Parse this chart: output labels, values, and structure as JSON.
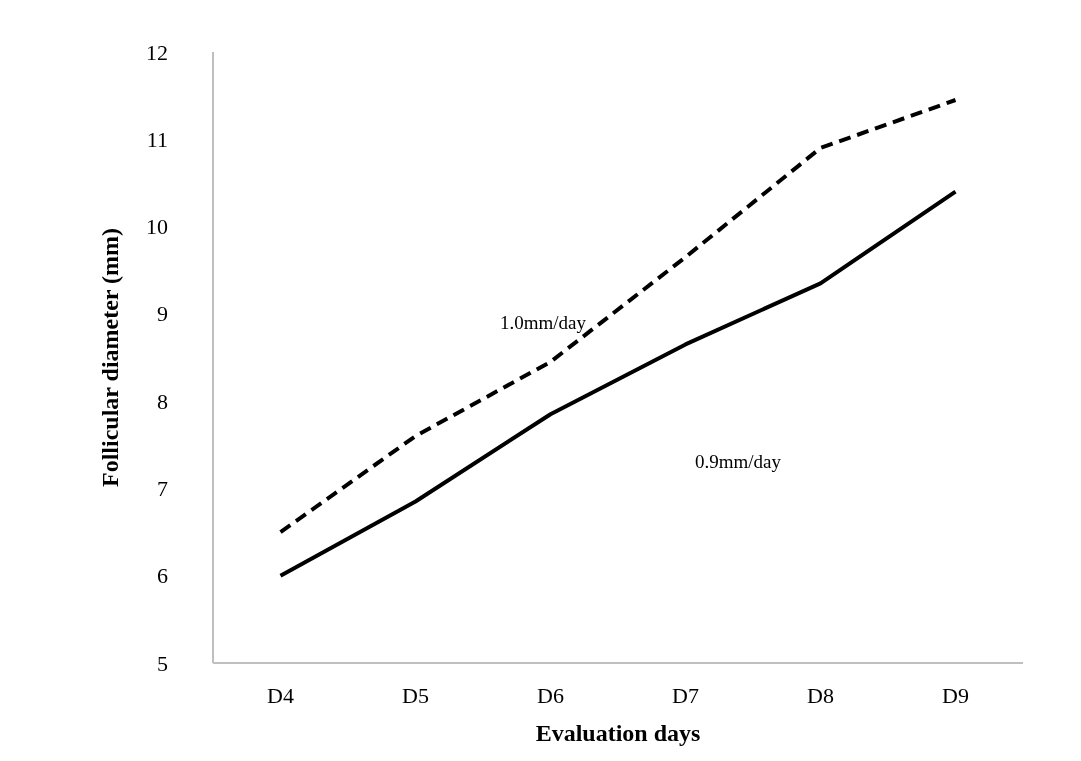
{
  "chart_data": {
    "type": "line",
    "xlabel": "Evaluation days",
    "ylabel": "Follicular diameter (mm)",
    "categories": [
      "D4",
      "D5",
      "D6",
      "D7",
      "D8",
      "D9"
    ],
    "series": [
      {
        "color": "#000000",
        "line_style": "dashed",
        "values": [
          6.5,
          7.6,
          8.45,
          9.65,
          10.9,
          11.45
        ]
      },
      {
        "color": "#000000",
        "line_style": "solid",
        "values": [
          6.0,
          6.85,
          7.85,
          8.65,
          9.35,
          10.4
        ]
      }
    ],
    "annotations": [
      "1.0mm/day",
      "0.9mm/day"
    ],
    "ylim": [
      5,
      12
    ],
    "yticks": [
      5,
      6,
      7,
      8,
      9,
      10,
      11,
      12
    ]
  }
}
